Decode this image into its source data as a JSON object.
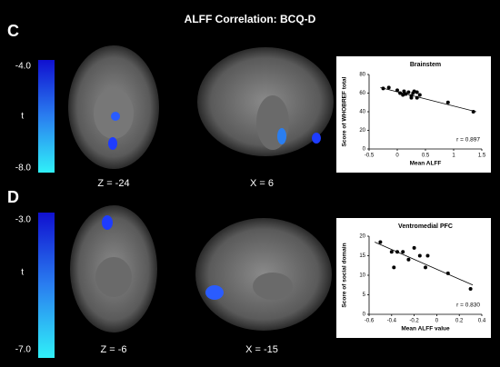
{
  "title": "ALFF Correlation: BCQ-D",
  "panels": [
    {
      "label": "C",
      "colorbar": [
        "-4.0",
        "t",
        "-8.0"
      ],
      "slices": [
        "Z = -24",
        "X = 6"
      ]
    },
    {
      "label": "D",
      "colorbar": [
        "-3.0",
        "t",
        "-7.0"
      ],
      "slices": [
        "Z = -6",
        "X = -15"
      ]
    }
  ],
  "chart_data": [
    {
      "type": "scatter",
      "title": "Brainstem",
      "x_label": "Mean ALFF",
      "y_label": "Score of WHOBREF total",
      "annotation": "r = 0.897",
      "x": [
        -0.25,
        -0.15,
        0,
        0.05,
        0.1,
        0.12,
        0.15,
        0.2,
        0.25,
        0.28,
        0.3,
        0.35,
        0.4,
        0.25,
        0.35,
        0.9,
        1.35
      ],
      "values": [
        65,
        66,
        63,
        60,
        58,
        62,
        59,
        61,
        57,
        60,
        62,
        61,
        58,
        55,
        55,
        50,
        40
      ],
      "trendline": {
        "x": [
          -0.3,
          1.4
        ],
        "values": [
          66,
          40
        ]
      },
      "color": "#000000",
      "xlim": [
        -0.5,
        1.5
      ],
      "xticks": [
        -0.5,
        0,
        0.5,
        1,
        1.5
      ],
      "ylim": [
        0,
        80
      ],
      "yticks": [
        0,
        20,
        40,
        60,
        80
      ]
    },
    {
      "type": "scatter",
      "title": "Ventromedial PFC",
      "x_label": "Mean ALFF value",
      "y_label": "Score of social domain",
      "annotation": "r = 0.830",
      "x": [
        -0.5,
        -0.4,
        -0.38,
        -0.35,
        -0.3,
        -0.25,
        -0.2,
        -0.15,
        -0.1,
        -0.08,
        0.1,
        0.3
      ],
      "values": [
        18.5,
        16,
        12,
        16,
        16,
        14,
        17,
        15,
        12,
        15,
        10.5,
        6.5
      ],
      "trendline": {
        "x": [
          -0.55,
          0.32
        ],
        "values": [
          18.5,
          7.5
        ]
      },
      "color": "#000000",
      "xlim": [
        -0.6,
        0.4
      ],
      "xticks": [
        -0.6,
        -0.4,
        -0.2,
        0,
        0.2,
        0.4
      ],
      "ylim": [
        0,
        20
      ],
      "yticks": [
        0,
        5,
        10,
        15,
        20
      ]
    }
  ]
}
